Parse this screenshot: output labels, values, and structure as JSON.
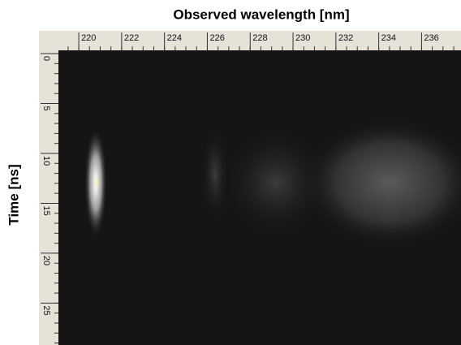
{
  "chart_data": {
    "type": "image",
    "xlabel": "Observed wavelength [nm]",
    "ylabel": "Time [ns]",
    "xlim": [
      219.05,
      237.84
    ],
    "xticks": [
      220,
      222,
      224,
      226,
      228,
      230,
      232,
      234,
      236
    ],
    "ylim": [
      -0.33,
      29.2
    ],
    "yticks": [
      0,
      5,
      10,
      15,
      20,
      25
    ]
  }
}
